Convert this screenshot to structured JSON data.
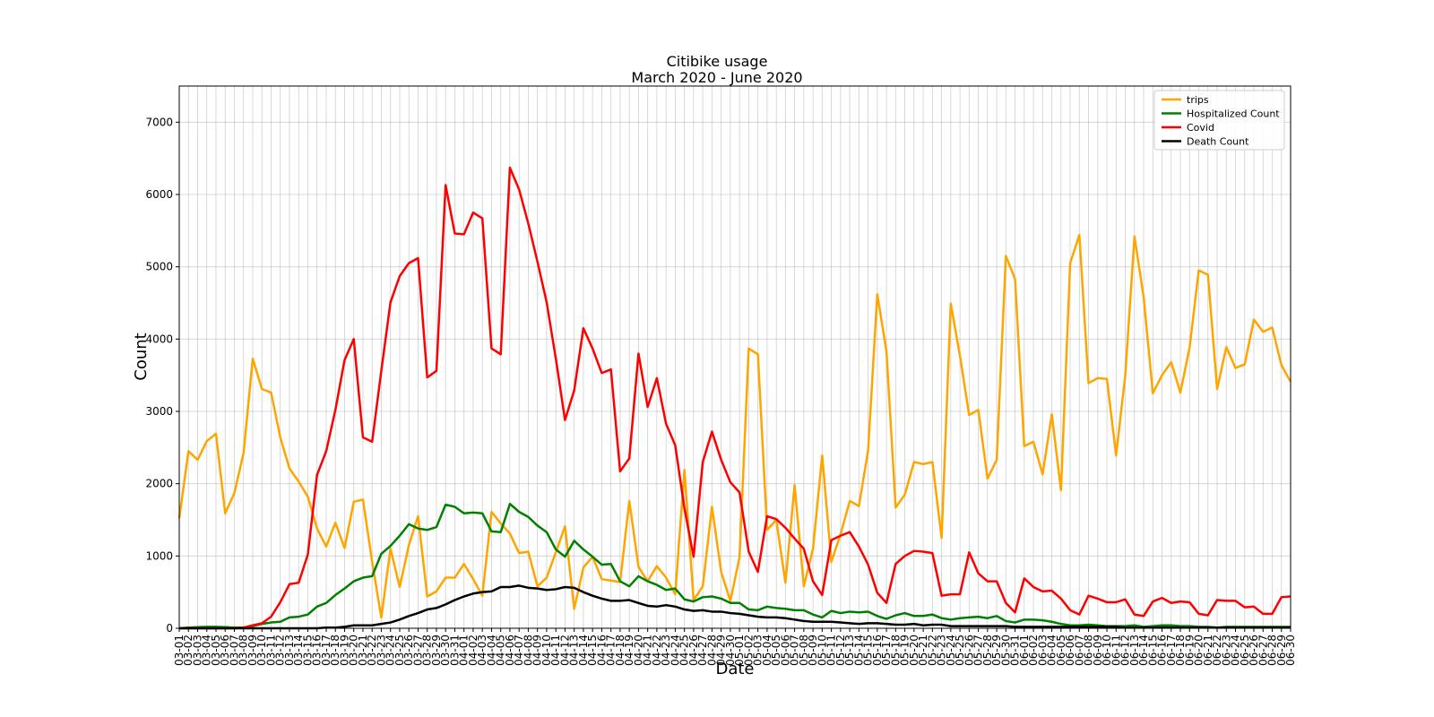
{
  "chart_data": {
    "type": "line",
    "title": "Citibike usage",
    "subtitle": "March 2020 - June 2020",
    "xlabel": "Date",
    "ylabel": "Count",
    "ylim": [
      0,
      7500
    ],
    "yticks": [
      0,
      1000,
      2000,
      3000,
      4000,
      5000,
      6000,
      7000
    ],
    "grid": true,
    "legend_position": "top-right",
    "x": [
      "03-01",
      "03-02",
      "03-03",
      "03-04",
      "03-05",
      "03-06",
      "03-07",
      "03-08",
      "03-09",
      "03-10",
      "03-11",
      "03-12",
      "03-13",
      "03-14",
      "03-15",
      "03-16",
      "03-17",
      "03-18",
      "03-19",
      "03-20",
      "03-21",
      "03-22",
      "03-23",
      "03-24",
      "03-25",
      "03-26",
      "03-27",
      "03-28",
      "03-29",
      "03-30",
      "03-31",
      "04-01",
      "04-02",
      "04-03",
      "04-04",
      "04-05",
      "04-06",
      "04-07",
      "04-08",
      "04-09",
      "04-10",
      "04-11",
      "04-12",
      "04-13",
      "04-14",
      "04-15",
      "04-16",
      "04-17",
      "04-18",
      "04-19",
      "04-20",
      "04-21",
      "04-22",
      "04-23",
      "04-24",
      "04-25",
      "04-26",
      "04-27",
      "04-28",
      "04-29",
      "04-30",
      "05-01",
      "05-02",
      "05-03",
      "05-04",
      "05-05",
      "05-06",
      "05-07",
      "05-08",
      "05-09",
      "05-10",
      "05-11",
      "05-12",
      "05-13",
      "05-14",
      "05-15",
      "05-16",
      "05-17",
      "05-18",
      "05-19",
      "05-20",
      "05-21",
      "05-22",
      "05-23",
      "05-24",
      "05-25",
      "05-26",
      "05-27",
      "05-28",
      "05-29",
      "05-30",
      "05-31",
      "06-01",
      "06-02",
      "06-03",
      "06-04",
      "06-05",
      "06-06",
      "06-07",
      "06-08",
      "06-09",
      "06-10",
      "06-11",
      "06-12",
      "06-13",
      "06-14",
      "06-15",
      "06-16",
      "06-17",
      "06-18",
      "06-19",
      "06-20",
      "06-21",
      "06-22",
      "06-23",
      "06-24",
      "06-25",
      "06-26",
      "06-27",
      "06-28",
      "06-29",
      "06-30"
    ],
    "series": [
      {
        "name": "trips",
        "color": "#ffa500",
        "values": [
          1520,
          2450,
          2330,
          2590,
          2690,
          1590,
          1870,
          2420,
          3730,
          3310,
          3260,
          2640,
          2210,
          2030,
          1820,
          1380,
          1130,
          1460,
          1110,
          1750,
          1780,
          920,
          150,
          1100,
          570,
          1150,
          1550,
          440,
          510,
          700,
          700,
          890,
          680,
          450,
          1610,
          1450,
          1310,
          1040,
          1060,
          580,
          700,
          1050,
          1410,
          270,
          840,
          990,
          680,
          660,
          640,
          1760,
          850,
          650,
          860,
          700,
          470,
          2190,
          390,
          580,
          1680,
          780,
          380,
          980,
          3870,
          3790,
          1360,
          1500,
          630,
          1980,
          580,
          1100,
          2390,
          920,
          1300,
          1760,
          1690,
          2460,
          4620,
          3830,
          1670,
          1850,
          2300,
          2270,
          2300,
          1250,
          4490,
          3770,
          2950,
          3020,
          2070,
          2330,
          5150,
          4830,
          2520,
          2580,
          2130,
          2960,
          1910,
          5050,
          5440,
          3390,
          3460,
          3450,
          2390,
          3500,
          5420,
          4580,
          3250,
          3500,
          3680,
          3260,
          3880,
          4950,
          4890,
          3310,
          3890,
          3600,
          3650,
          4270,
          4100,
          4160,
          3640,
          3410
        ]
      },
      {
        "name": "Hospitalized Count",
        "color": "#008000",
        "values": [
          0,
          10,
          15,
          20,
          20,
          15,
          10,
          10,
          30,
          60,
          80,
          90,
          150,
          160,
          190,
          300,
          350,
          460,
          550,
          650,
          700,
          720,
          1030,
          1140,
          1280,
          1440,
          1380,
          1360,
          1400,
          1710,
          1680,
          1590,
          1600,
          1590,
          1340,
          1330,
          1720,
          1610,
          1540,
          1420,
          1330,
          1090,
          990,
          1210,
          1090,
          990,
          880,
          890,
          650,
          580,
          720,
          650,
          600,
          530,
          550,
          400,
          370,
          430,
          440,
          410,
          350,
          350,
          260,
          250,
          300,
          280,
          270,
          250,
          250,
          190,
          150,
          240,
          210,
          230,
          220,
          230,
          170,
          130,
          180,
          210,
          170,
          170,
          190,
          140,
          120,
          140,
          150,
          160,
          140,
          170,
          100,
          80,
          120,
          120,
          110,
          90,
          60,
          40,
          40,
          50,
          40,
          30,
          30,
          30,
          40,
          20,
          30,
          40,
          40,
          30,
          30,
          20,
          20,
          10,
          20,
          20,
          20,
          20,
          20,
          20,
          20,
          20
        ]
      },
      {
        "name": "Covid",
        "color": "#ff0000",
        "values": [
          0,
          0,
          0,
          0,
          0,
          0,
          0,
          10,
          40,
          70,
          160,
          360,
          610,
          630,
          1020,
          2120,
          2450,
          3020,
          3710,
          4000,
          2640,
          2580,
          3560,
          4510,
          4870,
          5050,
          5120,
          3470,
          3560,
          6130,
          5460,
          5450,
          5750,
          5670,
          3870,
          3790,
          6370,
          6070,
          5600,
          5070,
          4510,
          3730,
          2880,
          3290,
          4150,
          3870,
          3530,
          3580,
          2170,
          2350,
          3800,
          3060,
          3460,
          2830,
          2530,
          1660,
          990,
          2300,
          2720,
          2330,
          2020,
          1880,
          1060,
          780,
          1550,
          1510,
          1390,
          1240,
          1100,
          650,
          460,
          1220,
          1280,
          1330,
          1130,
          880,
          490,
          350,
          890,
          1000,
          1070,
          1060,
          1040,
          450,
          470,
          470,
          1050,
          760,
          650,
          650,
          350,
          220,
          690,
          570,
          510,
          520,
          410,
          250,
          190,
          450,
          410,
          360,
          360,
          400,
          190,
          170,
          370,
          420,
          350,
          370,
          360,
          200,
          180,
          390,
          380,
          380,
          290,
          300,
          200,
          200,
          430,
          440
        ]
      },
      {
        "name": "Death Count",
        "color": "#000000",
        "values": [
          0,
          0,
          0,
          0,
          0,
          0,
          0,
          0,
          0,
          0,
          0,
          0,
          0,
          0,
          0,
          0,
          10,
          10,
          20,
          40,
          40,
          40,
          60,
          80,
          120,
          170,
          210,
          260,
          280,
          330,
          390,
          440,
          480,
          500,
          510,
          570,
          570,
          590,
          560,
          550,
          530,
          540,
          570,
          560,
          500,
          450,
          410,
          380,
          380,
          390,
          350,
          310,
          300,
          320,
          300,
          260,
          240,
          250,
          230,
          230,
          210,
          200,
          180,
          160,
          150,
          150,
          140,
          120,
          100,
          90,
          90,
          90,
          80,
          70,
          60,
          70,
          70,
          60,
          50,
          50,
          60,
          40,
          50,
          50,
          30,
          30,
          30,
          30,
          30,
          30,
          30,
          20,
          20,
          20,
          20,
          20,
          20,
          20,
          20,
          20,
          20,
          20,
          20,
          10,
          10,
          10,
          10,
          10,
          10,
          10,
          10,
          10,
          10,
          10,
          10,
          10,
          10,
          10,
          10,
          10,
          10,
          10
        ]
      }
    ]
  }
}
